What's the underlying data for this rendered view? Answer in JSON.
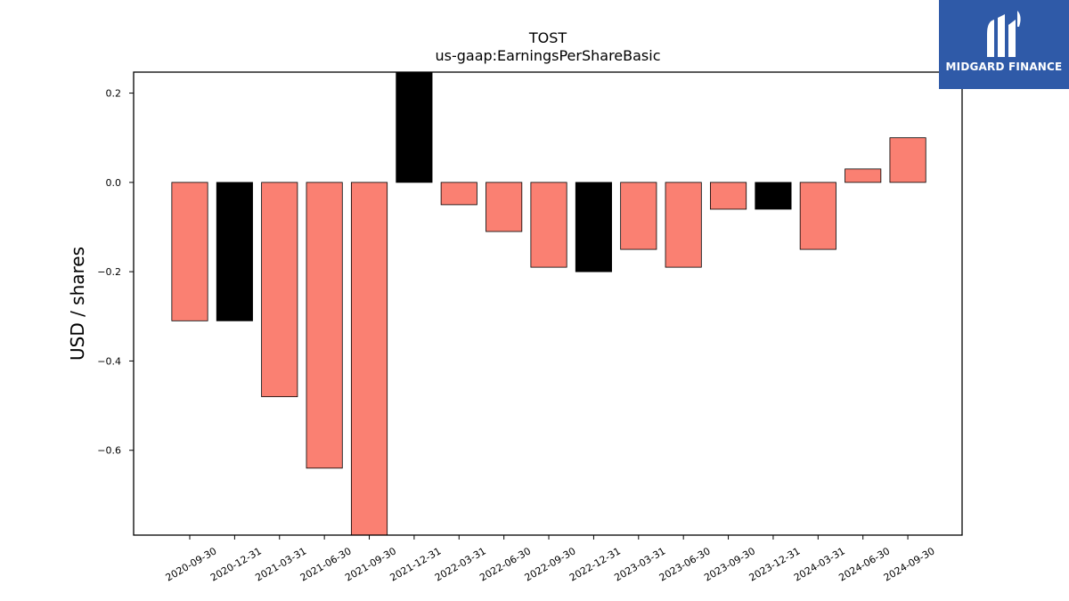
{
  "brand": {
    "name": "MIDGARD FINANCE",
    "bg_color": "#2f5aa8"
  },
  "chart_data": {
    "type": "bar",
    "title": "TOST",
    "subtitle": "us-gaap:EarningsPerShareBasic",
    "xlabel": "",
    "ylabel": "USD / shares",
    "ylim": [
      -0.79,
      0.247
    ],
    "yticks": [
      0.2,
      0.0,
      -0.2,
      -0.4,
      -0.6
    ],
    "ytick_labels": [
      "0.2",
      "0.0",
      "−0.2",
      "−0.4",
      "−0.6"
    ],
    "categories": [
      "2020-09-30",
      "2020-12-31",
      "2021-03-31",
      "2021-06-30",
      "2021-09-30",
      "2021-12-31",
      "2022-03-31",
      "2022-06-30",
      "2022-09-30",
      "2022-12-31",
      "2023-03-31",
      "2023-06-30",
      "2023-09-30",
      "2023-12-31",
      "2024-03-31",
      "2024-06-30",
      "2024-09-30"
    ],
    "values": [
      -0.31,
      -0.31,
      -0.48,
      -0.64,
      -0.83,
      0.25,
      -0.05,
      -0.11,
      -0.19,
      -0.2,
      -0.15,
      -0.19,
      -0.06,
      -0.06,
      -0.15,
      0.03,
      0.1
    ],
    "bar_colors": [
      "#fa8072",
      "#000000",
      "#fa8072",
      "#fa8072",
      "#fa8072",
      "#000000",
      "#fa8072",
      "#fa8072",
      "#fa8072",
      "#000000",
      "#fa8072",
      "#fa8072",
      "#fa8072",
      "#000000",
      "#fa8072",
      "#fa8072",
      "#fa8072"
    ],
    "grid": false,
    "legend": "none"
  }
}
